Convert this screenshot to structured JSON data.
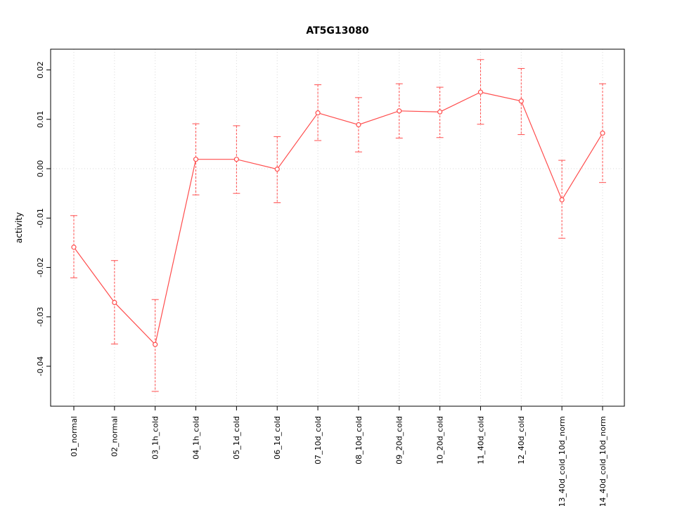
{
  "chart_data": {
    "type": "line",
    "title": "AT5G13080",
    "xlabel": "",
    "ylabel": "activity",
    "legend": "none",
    "grid": {
      "vertical_dotted": true,
      "horizontal_zero_dotted": true
    },
    "marker": "open-circle",
    "categories": [
      "01_normal",
      "02_normal",
      "03_1h_cold",
      "04_1h_cold",
      "05_1d_cold",
      "06_1d_cold",
      "07_10d_cold",
      "08_10d_cold",
      "09_20d_cold",
      "10_20d_cold",
      "11_40d_cold",
      "12_40d_cold",
      "13_40d_cold_10d_norm",
      "14_40d_cold_10d_norm"
    ],
    "series": [
      {
        "name": "activity",
        "values": [
          -0.0159,
          -0.0271,
          -0.0356,
          0.0019,
          0.0019,
          -0.0001,
          0.0113,
          0.0089,
          0.0117,
          0.0115,
          0.0155,
          0.0137,
          -0.0063,
          0.0072
        ],
        "error_upper": [
          -0.0095,
          -0.0186,
          -0.0265,
          0.0091,
          0.0087,
          0.0065,
          0.017,
          0.0144,
          0.0172,
          0.0165,
          0.0221,
          0.0203,
          0.0017,
          0.0172
        ],
        "error_lower": [
          -0.0221,
          -0.0355,
          -0.0451,
          -0.0053,
          -0.005,
          -0.0069,
          0.0057,
          0.0034,
          0.0062,
          0.0063,
          0.009,
          0.0069,
          -0.0141,
          -0.0028
        ]
      }
    ],
    "yticks": [
      -0.04,
      -0.03,
      -0.02,
      -0.01,
      0.0,
      0.01,
      0.02
    ],
    "ylim": [
      -0.0481,
      0.0242
    ],
    "colors": {
      "line": "#ff4d4d",
      "marker_fill": "#ffffff",
      "grid": "#d8d8d8",
      "axis": "#000000",
      "text": "#000000",
      "background": "#ffffff"
    }
  }
}
